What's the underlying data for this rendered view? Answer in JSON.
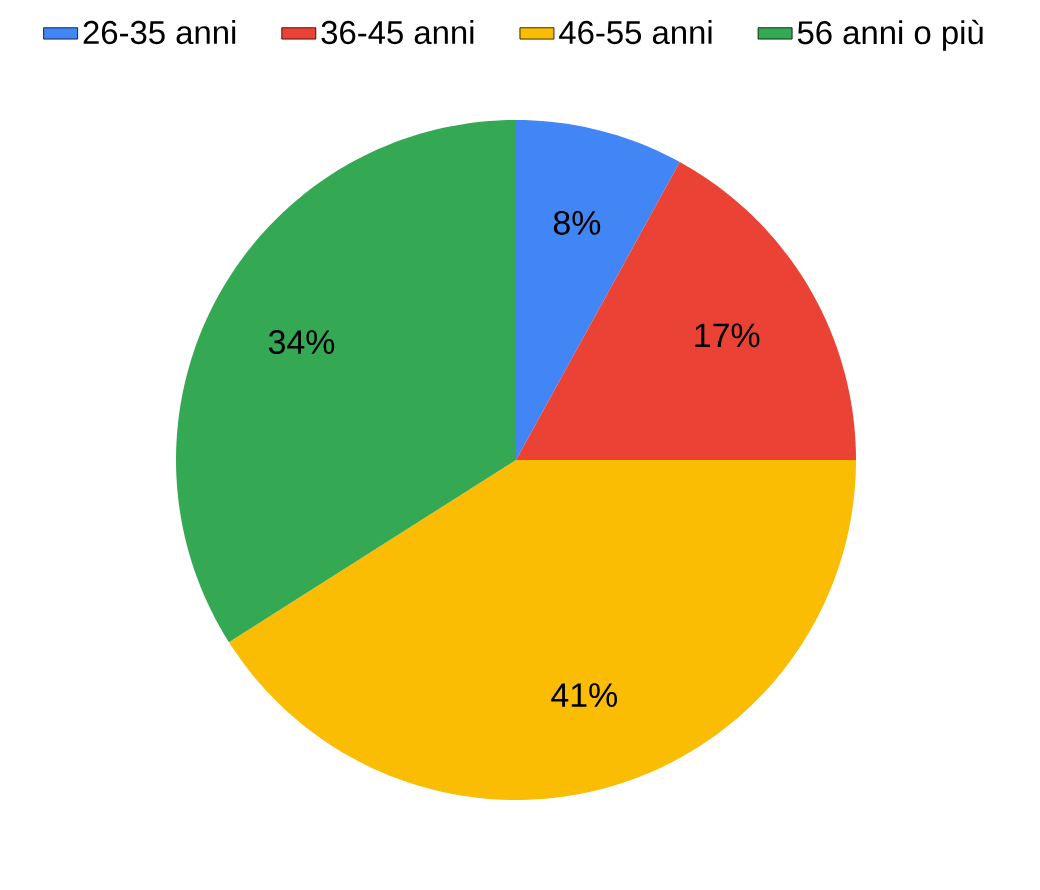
{
  "chart_data": {
    "type": "pie",
    "categories": [
      "26-35 anni",
      "36-45 anni",
      "46-55 anni",
      "56 anni o più"
    ],
    "values": [
      8,
      17,
      41,
      34
    ],
    "value_labels": [
      "8%",
      "17%",
      "41%",
      "34%"
    ],
    "colors": [
      "#4285f4",
      "#ea4335",
      "#fbbc04",
      "#34a853"
    ],
    "legend": "top"
  }
}
